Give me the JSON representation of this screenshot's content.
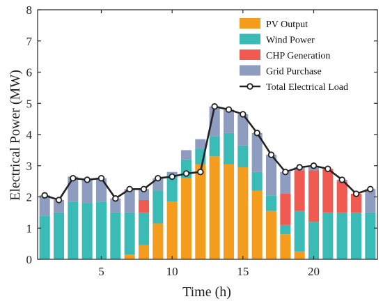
{
  "chart_data": {
    "type": "bar",
    "stacked": true,
    "title": "",
    "xlabel": "Time (h)",
    "ylabel": "Electrical Power (MW)",
    "ylim": [
      0,
      8
    ],
    "xlim": [
      0.5,
      24.5
    ],
    "x": [
      1,
      2,
      3,
      4,
      5,
      6,
      7,
      8,
      9,
      10,
      11,
      12,
      13,
      14,
      15,
      16,
      17,
      18,
      19,
      20,
      21,
      22,
      23,
      24
    ],
    "x_ticks": [
      5,
      10,
      15,
      20
    ],
    "y_ticks": [
      0,
      1,
      2,
      3,
      4,
      5,
      6,
      7,
      8
    ],
    "legend_position": "top-right",
    "grid": false,
    "series": [
      {
        "name": "PV Output",
        "color": "#F39C1E",
        "values": [
          0,
          0,
          0,
          0,
          0,
          0,
          0.15,
          0.45,
          1.15,
          1.85,
          2.6,
          3.05,
          3.3,
          3.05,
          2.95,
          2.2,
          1.55,
          0.8,
          0.25,
          0,
          0,
          0,
          0,
          0
        ]
      },
      {
        "name": "Wind Power",
        "color": "#3BBBB5",
        "values": [
          1.4,
          1.5,
          1.85,
          1.8,
          1.85,
          1.5,
          1.35,
          1.05,
          1.05,
          0.85,
          0.6,
          0.5,
          0.65,
          1.0,
          0.7,
          0.6,
          0.5,
          0.3,
          1.3,
          1.2,
          1.5,
          1.5,
          1.5,
          1.5
        ]
      },
      {
        "name": "CHP Generation",
        "color": "#F05A50",
        "values": [
          0,
          0,
          0,
          0,
          0,
          0,
          0,
          0.4,
          0,
          0,
          0,
          0,
          0,
          0,
          0,
          0,
          0,
          1.0,
          1.3,
          1.65,
          1.4,
          1.0,
          0.6,
          0
        ]
      },
      {
        "name": "Grid Purchase",
        "color": "#8E9CC0",
        "values": [
          0.65,
          0.4,
          0.8,
          0.75,
          0.75,
          0.45,
          0.75,
          0.35,
          0.4,
          0.1,
          0.3,
          0.3,
          0.95,
          0.75,
          1.0,
          1.25,
          1.3,
          0.7,
          0.1,
          0.1,
          0.0,
          0.05,
          0,
          0.75
        ]
      }
    ],
    "line": {
      "name": "Total Electrical Load",
      "color": "#222222",
      "values": [
        2.05,
        1.9,
        2.6,
        2.55,
        2.6,
        1.95,
        2.25,
        2.25,
        2.6,
        2.65,
        2.75,
        2.8,
        4.9,
        4.8,
        4.65,
        4.05,
        3.35,
        2.8,
        2.95,
        3.0,
        2.9,
        2.55,
        2.1,
        2.25
      ]
    }
  }
}
